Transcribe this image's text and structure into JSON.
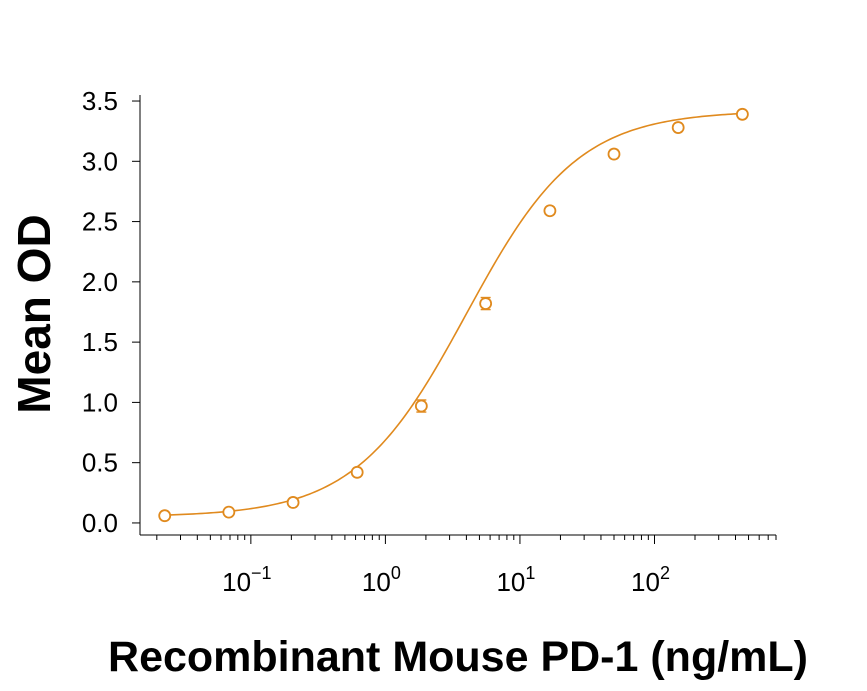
{
  "chart_data": {
    "type": "scatter",
    "title": "",
    "xlabel": "Recombinant Mouse PD-1 (ng/mL)",
    "ylabel": "Mean OD",
    "x_scale": "log",
    "xlim": [
      0.015,
      800
    ],
    "ylim": [
      -0.1,
      3.55
    ],
    "y_ticks": [
      "0.0",
      "0.5",
      "1.0",
      "1.5",
      "2.0",
      "2.5",
      "3.0",
      "3.5"
    ],
    "x_ticks": [
      {
        "base": "10",
        "exp": "−1",
        "value": 0.1
      },
      {
        "base": "10",
        "exp": "0",
        "value": 1
      },
      {
        "base": "10",
        "exp": "1",
        "value": 10
      },
      {
        "base": "10",
        "exp": "2",
        "value": 100
      }
    ],
    "grid": false,
    "legend": "none",
    "series": [
      {
        "color": "#e08a1e",
        "x": [
          0.0229,
          0.0686,
          0.206,
          0.617,
          1.85,
          5.56,
          16.7,
          50,
          150,
          450
        ],
        "y": [
          0.06,
          0.09,
          0.17,
          0.42,
          0.97,
          1.82,
          2.59,
          3.06,
          3.28,
          3.39
        ],
        "err": [
          0.01,
          0.01,
          0.015,
          0.02,
          0.05,
          0.05,
          0.03,
          0.03,
          0.02,
          0.02
        ]
      }
    ],
    "fit_curve": {
      "model": "4PL",
      "bottom": 0.05,
      "top": 3.42,
      "ec50": 4.0,
      "hill": 1.05
    }
  }
}
